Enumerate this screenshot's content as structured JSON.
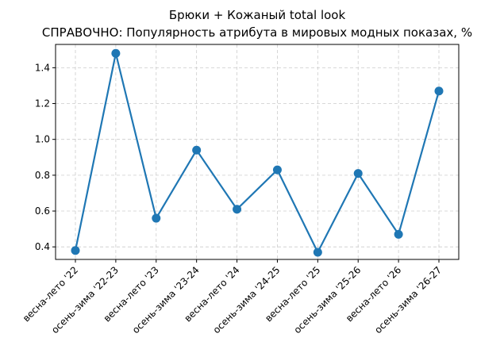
{
  "chart_data": {
    "type": "line",
    "title": "Брюки + Кожаный total look",
    "subtitle": "СПРАВОЧНО: Популярность атрибута в мировых модных показах, %",
    "xlabel": "",
    "ylabel": "",
    "categories": [
      "весна-лето '22",
      "осень-зима '22-23",
      "весна-лето '23",
      "осень-зима '23-24",
      "весна-лето '24",
      "осень-зима '24-25",
      "весна-лето '25",
      "осень-зима '25-26",
      "весна-лето '26",
      "осень-зима '26-27"
    ],
    "series": [
      {
        "values": [
          0.38,
          1.48,
          0.56,
          0.94,
          0.61,
          0.83,
          0.37,
          0.81,
          0.47,
          1.27
        ],
        "color": "#1f77b4"
      }
    ],
    "ylim": [
      0.33,
      1.53
    ],
    "yticks": [
      0.4,
      0.6,
      0.8,
      1.0,
      1.2,
      1.4
    ],
    "ytick_labels": [
      "0.4",
      "0.6",
      "0.8",
      "1.0",
      "1.2",
      "1.4"
    ],
    "grid": true
  }
}
